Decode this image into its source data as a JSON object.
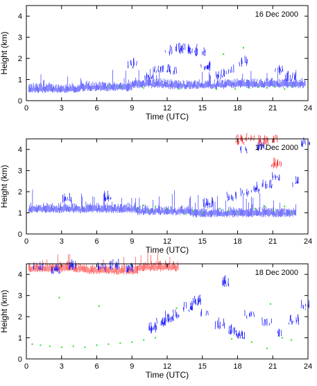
{
  "figure": {
    "description_colors": {
      "blue": "#1a1aff",
      "green": "#22dd22",
      "red": "#ff2020"
    }
  },
  "chart_data": [
    {
      "type": "scatter",
      "panel_label": "16 Dec 2000",
      "xlabel": "Time (UTC)",
      "ylabel": "Height (km)",
      "xlim": [
        0,
        24
      ],
      "ylim": [
        0,
        4.5
      ],
      "xticks": [
        0,
        3,
        6,
        9,
        12,
        15,
        18,
        21,
        24
      ],
      "yticks": [
        0,
        1,
        2,
        3,
        4
      ],
      "series": [
        {
          "color": "#1a1aff",
          "kind": "band",
          "segments": [
            {
              "x0": 0.2,
              "x1": 4.5,
              "y": 0.52
            },
            {
              "x0": 4.5,
              "x1": 9.0,
              "y": 0.6
            },
            {
              "x0": 9.0,
              "x1": 12.0,
              "y": 0.75
            },
            {
              "x0": 12.0,
              "x1": 17.0,
              "y": 0.7
            },
            {
              "x0": 17.0,
              "x1": 23.8,
              "y": 0.75
            }
          ]
        },
        {
          "color": "#1a1aff",
          "kind": "patches",
          "points": [
            {
              "x": 12.2,
              "y": 2.2
            },
            {
              "x": 13.0,
              "y": 2.3
            },
            {
              "x": 13.6,
              "y": 2.4
            },
            {
              "x": 14.2,
              "y": 2.25
            },
            {
              "x": 14.8,
              "y": 2.2
            },
            {
              "x": 9.0,
              "y": 1.6
            },
            {
              "x": 11.3,
              "y": 1.4
            },
            {
              "x": 12.4,
              "y": 1.3
            },
            {
              "x": 15.3,
              "y": 1.5
            },
            {
              "x": 17.3,
              "y": 1.3
            },
            {
              "x": 18.5,
              "y": 1.7
            },
            {
              "x": 21.5,
              "y": 1.3
            },
            {
              "x": 22.5,
              "y": 1.0
            },
            {
              "x": 10.5,
              "y": 1.0
            },
            {
              "x": 16.5,
              "y": 1.1
            }
          ]
        },
        {
          "color": "#22dd22",
          "kind": "dots",
          "points": [
            {
              "x": 7.0,
              "y": 0.7
            },
            {
              "x": 8.0,
              "y": 0.65
            },
            {
              "x": 10.0,
              "y": 0.6
            },
            {
              "x": 13.0,
              "y": 0.55
            },
            {
              "x": 16.2,
              "y": 0.55
            },
            {
              "x": 16.8,
              "y": 2.2
            },
            {
              "x": 18.5,
              "y": 2.5
            },
            {
              "x": 19.0,
              "y": 0.6
            },
            {
              "x": 19.8,
              "y": 0.65
            },
            {
              "x": 20.5,
              "y": 0.6
            },
            {
              "x": 21.2,
              "y": 0.65
            },
            {
              "x": 22.0,
              "y": 0.55
            },
            {
              "x": 22.6,
              "y": 0.7
            },
            {
              "x": 17.8,
              "y": 0.55
            }
          ]
        }
      ]
    },
    {
      "type": "scatter",
      "panel_label": "17 Dec 2000",
      "xlabel": "Time (UTC)",
      "ylabel": "Height (km)",
      "xlim": [
        0,
        24
      ],
      "ylim": [
        0,
        4.5
      ],
      "xticks": [
        0,
        3,
        6,
        9,
        12,
        15,
        18,
        21,
        24
      ],
      "yticks": [
        0,
        1,
        2,
        3,
        4
      ],
      "series": [
        {
          "color": "#1a1aff",
          "kind": "band",
          "segments": [
            {
              "x0": 0.2,
              "x1": 9.5,
              "y": 1.15
            },
            {
              "x0": 9.5,
              "x1": 14.0,
              "y": 1.05
            },
            {
              "x0": 14.0,
              "x1": 19.0,
              "y": 0.95
            },
            {
              "x0": 19.0,
              "x1": 23.0,
              "y": 0.95
            }
          ]
        },
        {
          "color": "#1a1aff",
          "kind": "patches",
          "points": [
            {
              "x": 17.5,
              "y": 1.6
            },
            {
              "x": 18.5,
              "y": 1.8
            },
            {
              "x": 19.5,
              "y": 2.0
            },
            {
              "x": 20.5,
              "y": 2.2
            },
            {
              "x": 21.2,
              "y": 2.6
            },
            {
              "x": 22.8,
              "y": 2.3
            },
            {
              "x": 18.5,
              "y": 3.9
            },
            {
              "x": 20.0,
              "y": 4.0
            },
            {
              "x": 23.8,
              "y": 4.2
            },
            {
              "x": 3.5,
              "y": 1.5
            },
            {
              "x": 6.8,
              "y": 1.6
            },
            {
              "x": 15.5,
              "y": 1.3
            }
          ]
        },
        {
          "color": "#ff2020",
          "kind": "patches",
          "points": [
            {
              "x": 18.2,
              "y": 4.3
            },
            {
              "x": 19.0,
              "y": 4.4
            },
            {
              "x": 20.2,
              "y": 4.3
            },
            {
              "x": 21.0,
              "y": 4.4
            },
            {
              "x": 21.3,
              "y": 3.2
            }
          ]
        },
        {
          "color": "#22dd22",
          "kind": "dots",
          "points": [
            {
              "x": 9.5,
              "y": 1.2
            },
            {
              "x": 10.0,
              "y": 1.35
            },
            {
              "x": 10.5,
              "y": 1.1
            },
            {
              "x": 11.0,
              "y": 1.3
            },
            {
              "x": 12.0,
              "y": 1.2
            },
            {
              "x": 13.5,
              "y": 0.95
            },
            {
              "x": 14.2,
              "y": 1.1
            },
            {
              "x": 15.0,
              "y": 1.0
            },
            {
              "x": 16.5,
              "y": 1.2
            },
            {
              "x": 17.2,
              "y": 1.1
            },
            {
              "x": 18.0,
              "y": 1.0
            },
            {
              "x": 19.5,
              "y": 1.2
            },
            {
              "x": 20.3,
              "y": 1.3
            },
            {
              "x": 21.0,
              "y": 1.1
            },
            {
              "x": 22.0,
              "y": 1.3
            },
            {
              "x": 22.6,
              "y": 1.0
            }
          ]
        }
      ]
    },
    {
      "type": "scatter",
      "panel_label": "18 Dec 2000",
      "xlabel": "Time (UTC)",
      "ylabel": "Height (km)",
      "xlim": [
        0,
        24
      ],
      "ylim": [
        0,
        4.5
      ],
      "xticks": [
        0,
        3,
        6,
        9,
        12,
        15,
        18,
        21,
        24
      ],
      "yticks": [
        0,
        1,
        2,
        3,
        4
      ],
      "series": [
        {
          "color": "#ff2020",
          "kind": "band",
          "segments": [
            {
              "x0": 0.2,
              "x1": 5.0,
              "y": 4.25
            },
            {
              "x0": 5.0,
              "x1": 9.5,
              "y": 4.15
            },
            {
              "x0": 9.5,
              "x1": 13.0,
              "y": 4.3
            }
          ]
        },
        {
          "color": "#1a1aff",
          "kind": "patches",
          "points": [
            {
              "x": 1.0,
              "y": 4.2
            },
            {
              "x": 2.5,
              "y": 4.1
            },
            {
              "x": 4.0,
              "y": 4.3
            },
            {
              "x": 6.5,
              "y": 4.2
            },
            {
              "x": 7.5,
              "y": 4.3
            },
            {
              "x": 8.8,
              "y": 4.1
            },
            {
              "x": 10.8,
              "y": 1.3
            },
            {
              "x": 11.5,
              "y": 1.6
            },
            {
              "x": 12.2,
              "y": 1.8
            },
            {
              "x": 12.8,
              "y": 2.0
            },
            {
              "x": 13.8,
              "y": 2.3
            },
            {
              "x": 14.5,
              "y": 2.6
            },
            {
              "x": 15.2,
              "y": 2.1
            },
            {
              "x": 16.5,
              "y": 1.5
            },
            {
              "x": 17.0,
              "y": 3.5
            },
            {
              "x": 17.5,
              "y": 1.2
            },
            {
              "x": 18.2,
              "y": 1.0
            },
            {
              "x": 19.0,
              "y": 2.0
            },
            {
              "x": 20.5,
              "y": 1.6
            },
            {
              "x": 22.8,
              "y": 1.7
            },
            {
              "x": 23.8,
              "y": 2.4
            },
            {
              "x": 21.5,
              "y": 1.1
            }
          ]
        },
        {
          "color": "#22dd22",
          "kind": "dots",
          "points": [
            {
              "x": 0.5,
              "y": 0.7
            },
            {
              "x": 1.2,
              "y": 0.65
            },
            {
              "x": 2.0,
              "y": 0.6
            },
            {
              "x": 3.0,
              "y": 0.55
            },
            {
              "x": 4.0,
              "y": 0.6
            },
            {
              "x": 5.0,
              "y": 0.55
            },
            {
              "x": 6.0,
              "y": 0.65
            },
            {
              "x": 7.0,
              "y": 0.7
            },
            {
              "x": 8.0,
              "y": 0.75
            },
            {
              "x": 9.0,
              "y": 0.8
            },
            {
              "x": 10.0,
              "y": 0.9
            },
            {
              "x": 11.0,
              "y": 1.0
            },
            {
              "x": 2.8,
              "y": 2.9
            },
            {
              "x": 6.2,
              "y": 2.5
            },
            {
              "x": 12.8,
              "y": 2.4
            },
            {
              "x": 17.5,
              "y": 0.95
            },
            {
              "x": 19.2,
              "y": 0.8
            },
            {
              "x": 20.5,
              "y": 0.5
            },
            {
              "x": 21.8,
              "y": 1.0
            },
            {
              "x": 22.6,
              "y": 0.9
            },
            {
              "x": 20.8,
              "y": 2.6
            }
          ]
        }
      ]
    }
  ]
}
